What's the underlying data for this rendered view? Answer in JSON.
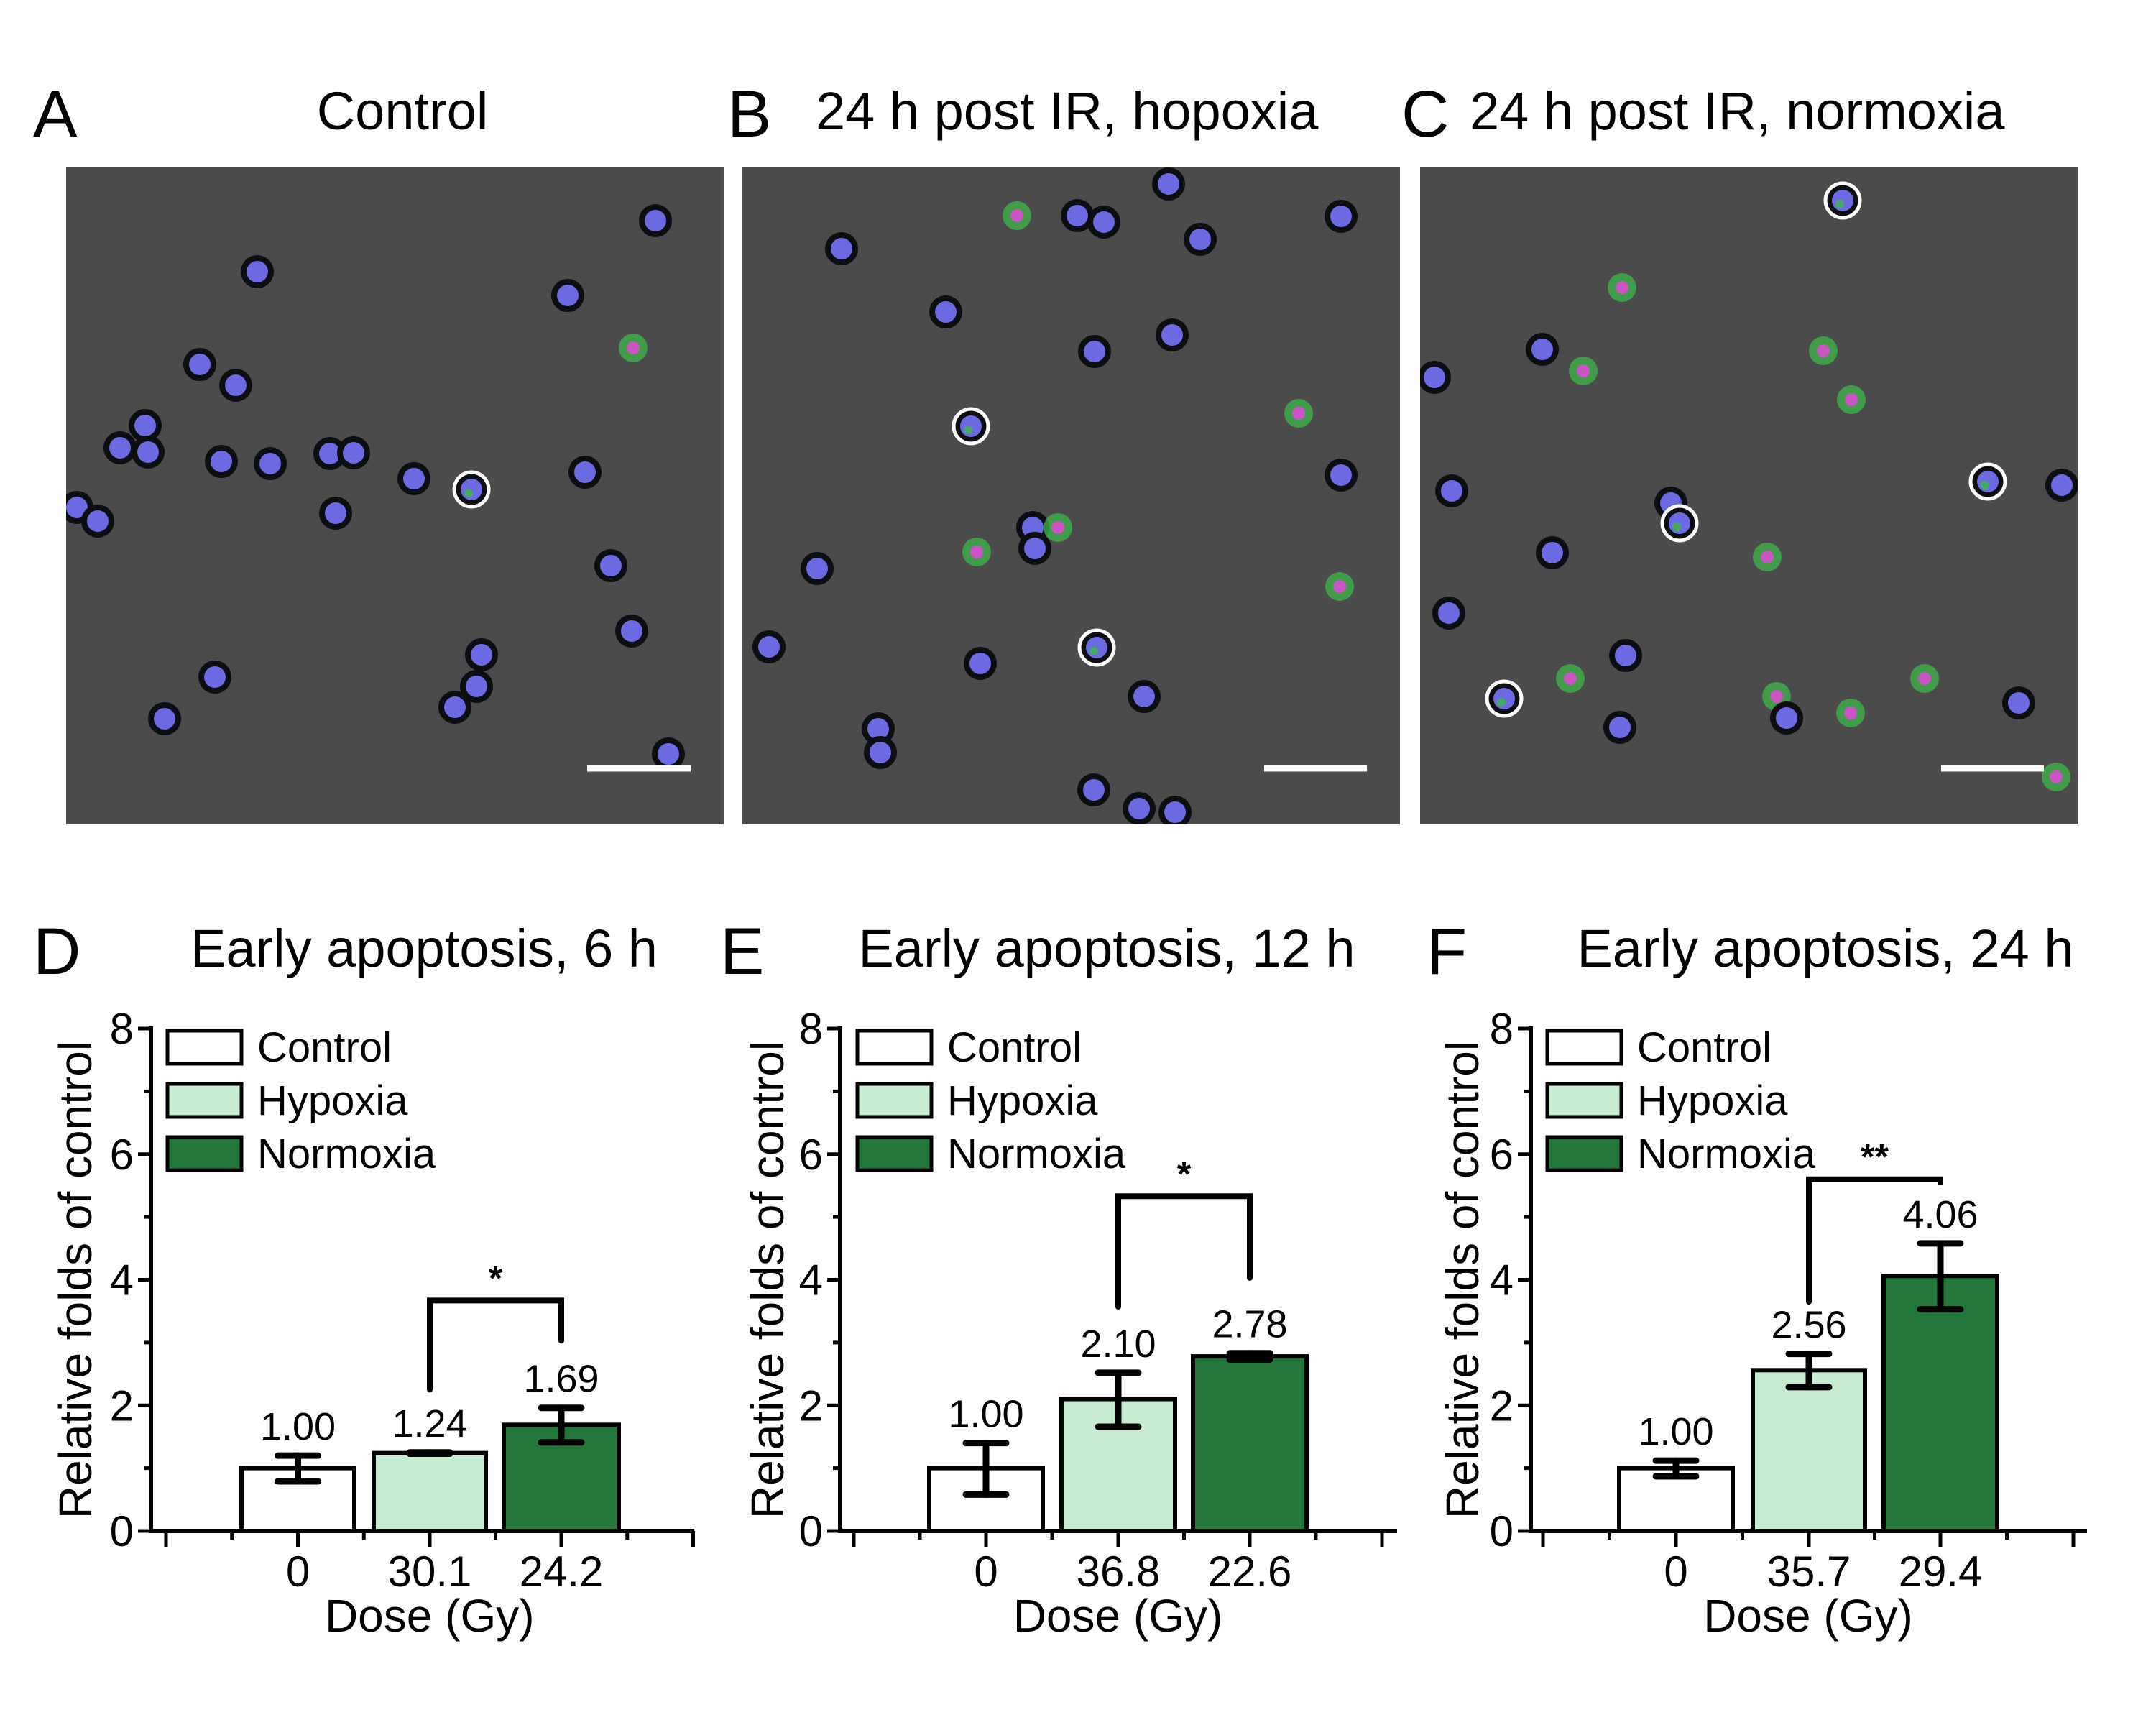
{
  "figure": {
    "panels_top": [
      {
        "letter": "A",
        "title": "Control"
      },
      {
        "letter": "B",
        "title": "24 h post IR, hopoxia"
      },
      {
        "letter": "C",
        "title": "24 h post IR, normoxia"
      }
    ],
    "colors": {
      "control": "#ffffff",
      "hypoxia": "#c7ecd1",
      "normoxia": "#24773a",
      "microscopy_background": "#4b4b4b",
      "nucleus": "#6b6ae0",
      "annexin": "#3fb64a",
      "pi": "#d94fd0"
    }
  },
  "chart_data": [
    {
      "type": "bar",
      "letter": "D",
      "title": "Early apoptosis, 6 h",
      "xlabel": "Dose (Gy)",
      "ylabel": "Relative folds of control",
      "ylim": [
        0,
        8
      ],
      "yticks": [
        "0",
        "2",
        "4",
        "6",
        "8"
      ],
      "categories": [
        "0",
        "30.1",
        "24.2"
      ],
      "legend": [
        "Control",
        "Hypoxia",
        "Normoxia"
      ],
      "legend_position": "top-left",
      "series": [
        {
          "name": "Control",
          "value": 1.0,
          "label": "1.00",
          "err_low": 0.79,
          "err_high": 1.2
        },
        {
          "name": "Hypoxia",
          "value": 1.24,
          "label": "1.24",
          "err_low": 1.23,
          "err_high": 1.25
        },
        {
          "name": "Normoxia",
          "value": 1.69,
          "label": "1.69",
          "err_low": 1.41,
          "err_high": 1.96
        }
      ],
      "significance": {
        "from": "Hypoxia",
        "to": "Normoxia",
        "label": "*",
        "top": 3.67,
        "left_end": 2.25,
        "right_end": 3.03
      }
    },
    {
      "type": "bar",
      "letter": "E",
      "title": "Early apoptosis, 12 h",
      "xlabel": "Dose (Gy)",
      "ylabel": "Relative folds of control",
      "ylim": [
        0,
        8
      ],
      "yticks": [
        "0",
        "2",
        "4",
        "6",
        "8"
      ],
      "categories": [
        "0",
        "36.8",
        "22.6"
      ],
      "legend": [
        "Control",
        "Hypoxia",
        "Normoxia"
      ],
      "legend_position": "top-left",
      "series": [
        {
          "name": "Control",
          "value": 1.0,
          "label": "1.00",
          "err_low": 0.58,
          "err_high": 1.4
        },
        {
          "name": "Hypoxia",
          "value": 2.1,
          "label": "2.10",
          "err_low": 1.66,
          "err_high": 2.52
        },
        {
          "name": "Normoxia",
          "value": 2.78,
          "label": "2.78",
          "err_low": 2.73,
          "err_high": 2.83
        }
      ],
      "significance": {
        "from": "Hypoxia",
        "to": "Normoxia",
        "label": "*",
        "top": 5.33,
        "left_end": 3.57,
        "right_end": 4.03
      }
    },
    {
      "type": "bar",
      "letter": "F",
      "title": "Early apoptosis, 24 h",
      "xlabel": "Dose (Gy)",
      "ylabel": "Relative folds of control",
      "ylim": [
        0,
        8
      ],
      "yticks": [
        "0",
        "2",
        "4",
        "6",
        "8"
      ],
      "categories": [
        "0",
        "35.7",
        "29.4"
      ],
      "legend": [
        "Control",
        "Hypoxia",
        "Normoxia"
      ],
      "legend_position": "top-left",
      "series": [
        {
          "name": "Control",
          "value": 1.0,
          "label": "1.00",
          "err_low": 0.87,
          "err_high": 1.12
        },
        {
          "name": "Hypoxia",
          "value": 2.56,
          "label": "2.56",
          "err_low": 2.29,
          "err_high": 2.82
        },
        {
          "name": "Normoxia",
          "value": 4.06,
          "label": "4.06",
          "err_low": 3.53,
          "err_high": 4.58
        },
        {
          "name": "_",
          "value": null
        }
      ],
      "significance": {
        "from": "Hypoxia",
        "to": "Normoxia",
        "label": "**",
        "top": 5.6,
        "left_end": 3.65,
        "right_end": 5.55
      }
    }
  ]
}
